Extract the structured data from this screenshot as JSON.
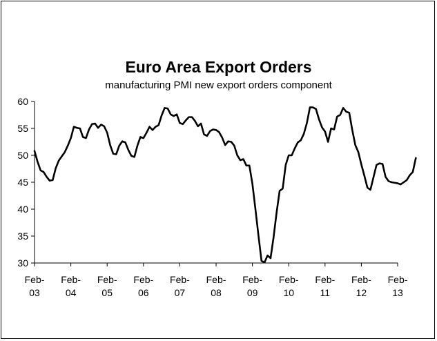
{
  "chart_data": {
    "type": "line",
    "title": "Euro Area Export Orders",
    "subtitle": "manufacturing PMI new export orders component",
    "xlabel": "",
    "ylabel": "",
    "ylim": [
      30,
      60
    ],
    "yticks": [
      30,
      35,
      40,
      45,
      50,
      55,
      60
    ],
    "xlim": [
      2003.083,
      2013.083
    ],
    "xticks": [
      {
        "year": 2003,
        "line1": "Feb-",
        "line2": "03"
      },
      {
        "year": 2004,
        "line1": "Feb-",
        "line2": "04"
      },
      {
        "year": 2005,
        "line1": "Feb-",
        "line2": "05"
      },
      {
        "year": 2006,
        "line1": "Feb-",
        "line2": "06"
      },
      {
        "year": 2007,
        "line1": "Feb-",
        "line2": "07"
      },
      {
        "year": 2008,
        "line1": "Feb-",
        "line2": "08"
      },
      {
        "year": 2009,
        "line1": "Feb-",
        "line2": "09"
      },
      {
        "year": 2010,
        "line1": "Feb-",
        "line2": "10"
      },
      {
        "year": 2011,
        "line1": "Feb-",
        "line2": "11"
      },
      {
        "year": 2012,
        "line1": "Feb-",
        "line2": "12"
      },
      {
        "year": 2013,
        "line1": "Feb-",
        "line2": "13"
      }
    ],
    "grid": false,
    "line_color": "#000000",
    "series": [
      {
        "x_start": "2003-02",
        "frequency": "monthly",
        "values": [
          50.8,
          48.8,
          47.2,
          46.9,
          46.0,
          45.3,
          45.4,
          47.6,
          49.0,
          49.8,
          50.6,
          51.8,
          53.2,
          55.3,
          55.1,
          55.0,
          53.4,
          53.2,
          54.8,
          55.8,
          55.9,
          55.1,
          55.7,
          55.4,
          54.2,
          51.9,
          50.3,
          50.2,
          51.8,
          52.6,
          52.4,
          51.0,
          49.9,
          49.7,
          51.8,
          53.4,
          53.2,
          54.2,
          55.3,
          54.7,
          55.3,
          55.6,
          57.4,
          58.8,
          58.7,
          57.6,
          57.3,
          57.6,
          56.0,
          55.8,
          56.5,
          57.1,
          57.1,
          56.4,
          55.4,
          55.9,
          53.9,
          53.6,
          54.5,
          54.8,
          54.7,
          54.3,
          53.3,
          51.9,
          52.6,
          52.5,
          51.8,
          50.0,
          49.1,
          49.3,
          48.1,
          48.1,
          44.7,
          40.0,
          35.1,
          30.4,
          30.1,
          31.4,
          30.9,
          34.8,
          39.4,
          43.4,
          43.8,
          48.2,
          50.0,
          50.0,
          51.3,
          52.4,
          52.8,
          54.0,
          56.0,
          58.9,
          58.9,
          58.6,
          56.7,
          55.2,
          54.4,
          52.5,
          55.0,
          54.8,
          57.2,
          57.5,
          58.8,
          58.1,
          57.9,
          54.7,
          51.9,
          50.6,
          48.3,
          46.2,
          44.0,
          43.6,
          45.9,
          48.2,
          48.5,
          48.4,
          46.0,
          45.2,
          45.0,
          44.9,
          44.8,
          44.6,
          45.0,
          45.4,
          46.3,
          46.9,
          49.5
        ]
      }
    ]
  }
}
